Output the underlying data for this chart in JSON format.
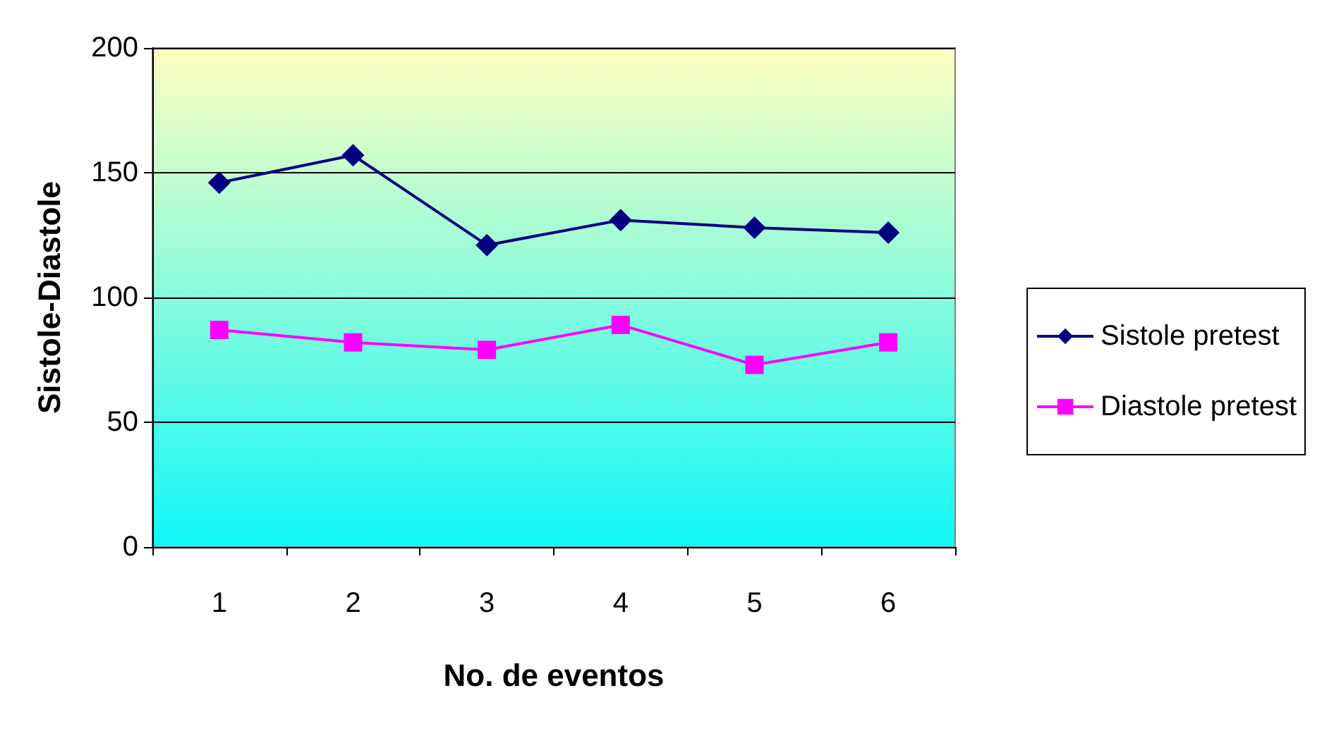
{
  "chart_data": {
    "type": "line",
    "xlabel": "No. de eventos",
    "ylabel": "Sistole-Diastole",
    "categories": [
      "1",
      "2",
      "3",
      "4",
      "5",
      "6"
    ],
    "series": [
      {
        "name": "Sistole pretest",
        "color": "#000080",
        "marker": "diamond",
        "values": [
          146,
          157,
          121,
          131,
          128,
          126
        ]
      },
      {
        "name": "Diastole pretest",
        "color": "#ff00ff",
        "marker": "square",
        "values": [
          87,
          82,
          79,
          89,
          73,
          82
        ]
      }
    ],
    "ylim": [
      0,
      200
    ],
    "yticks": [
      0,
      50,
      100,
      150,
      200
    ],
    "grid": "y",
    "legend": "right",
    "line_style": "solid"
  }
}
